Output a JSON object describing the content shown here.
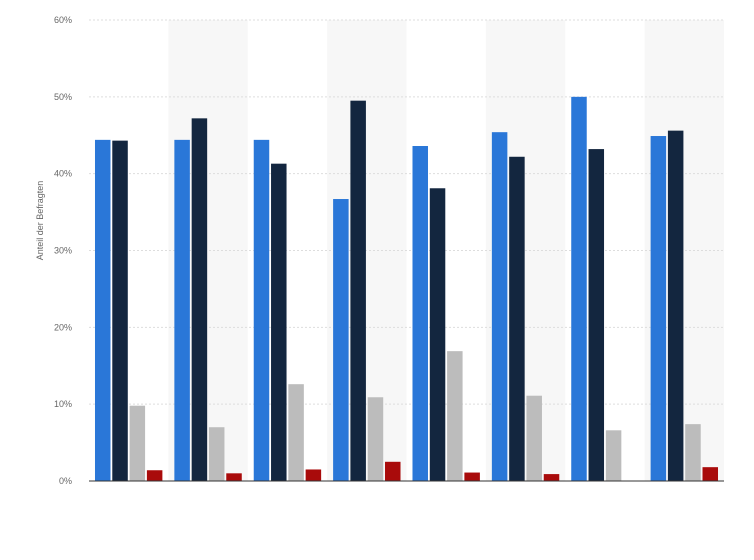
{
  "chart_data": {
    "type": "bar",
    "title": "",
    "xlabel": "",
    "ylabel": "Anteil der Befragten",
    "ylim": [
      0,
      60
    ],
    "yticks": [
      "0%",
      "10%",
      "20%",
      "30%",
      "40%",
      "50%",
      "60%"
    ],
    "categories": [
      "",
      "",
      "",
      "",
      "",
      "",
      "",
      ""
    ],
    "grid": true,
    "legend": "none",
    "series": [
      {
        "color": "#2a77d8",
        "values": [
          44.4,
          44.4,
          44.4,
          36.7,
          43.6,
          45.4,
          50.0,
          44.9
        ]
      },
      {
        "color": "#13263f",
        "values": [
          44.3,
          47.2,
          41.3,
          49.5,
          38.1,
          42.2,
          43.2,
          45.6
        ]
      },
      {
        "color": "#bcbcbc",
        "values": [
          9.8,
          7.0,
          12.6,
          10.9,
          16.9,
          11.1,
          6.6,
          7.4
        ]
      },
      {
        "color": "#a90b0b",
        "values": [
          1.4,
          1.0,
          1.5,
          2.5,
          1.1,
          0.9,
          0.0,
          1.8
        ]
      }
    ]
  }
}
